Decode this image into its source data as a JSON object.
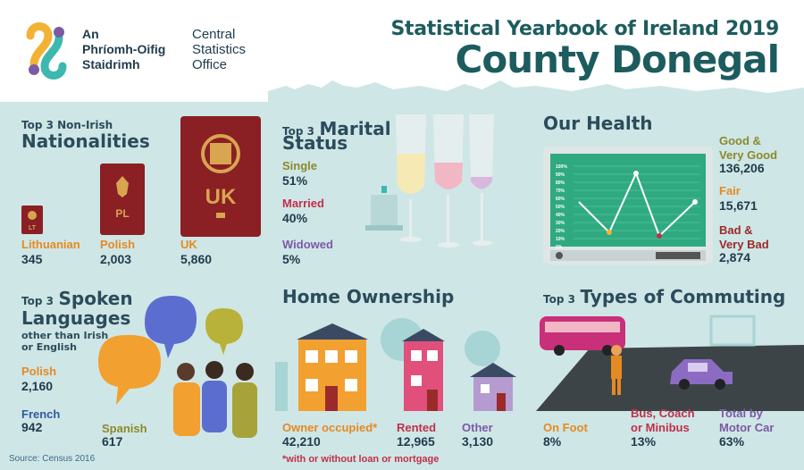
{
  "logo": {
    "irish_line1": "An",
    "irish_line2": "Phríomh-Oifig",
    "irish_line3": "Staidrimh",
    "english_line1": "Central",
    "english_line2": "Statistics",
    "english_line3": "Office"
  },
  "header": {
    "subtitle": "Statistical Yearbook of Ireland 2019",
    "title": "County Donegal"
  },
  "nationalities": {
    "title_small": "Top 3 Non-Irish",
    "title_large": "Nationalities",
    "items": [
      {
        "label": "Lithuanian",
        "value": "345",
        "code": "LT"
      },
      {
        "label": "Polish",
        "value": "2,003",
        "code": "PL"
      },
      {
        "label": "UK",
        "value": "5,860",
        "code": "UK"
      }
    ]
  },
  "marital": {
    "title_small": "Top 3",
    "title_large1": "Marital",
    "title_large2": "Status",
    "items": [
      {
        "label": "Single",
        "value": "51%"
      },
      {
        "label": "Married",
        "value": "40%"
      },
      {
        "label": "Widowed",
        "value": "5%"
      }
    ]
  },
  "health": {
    "title": "Our Health",
    "monitor_ticks": [
      "100%",
      "90%",
      "80%",
      "70%",
      "60%",
      "50%",
      "40%",
      "30%",
      "20%",
      "10%",
      "0%"
    ],
    "items": [
      {
        "label_line1": "Good &",
        "label_line2": "Very Good",
        "value": "136,206"
      },
      {
        "label_line1": "Fair",
        "label_line2": "",
        "value": "15,671"
      },
      {
        "label_line1": "Bad &",
        "label_line2": "Very Bad",
        "value": "2,874"
      }
    ]
  },
  "languages": {
    "title_small": "Top 3",
    "title_large1": "Spoken",
    "title_large2": "Languages",
    "subtitle_line1": "other than Irish",
    "subtitle_line2": "or English",
    "items": [
      {
        "label": "Polish",
        "value": "2,160"
      },
      {
        "label": "French",
        "value": "942"
      },
      {
        "label": "Spanish",
        "value": "617"
      }
    ]
  },
  "ownership": {
    "title": "Home Ownership",
    "items": [
      {
        "label": "Owner occupied*",
        "value": "42,210"
      },
      {
        "label": "Rented",
        "value": "12,965"
      },
      {
        "label": "Other",
        "value": "3,130"
      }
    ],
    "note": "*with or without loan or mortgage"
  },
  "commuting": {
    "title_small": "Top 3",
    "title_large": "Types of Commuting",
    "items": [
      {
        "label_line1": "On Foot",
        "label_line2": "",
        "value": "8%"
      },
      {
        "label_line1": "Bus, Coach",
        "label_line2": "or Minibus",
        "value": "13%"
      },
      {
        "label_line1": "Total by",
        "label_line2": "Motor Car",
        "value": "63%"
      }
    ]
  },
  "source": "Source: Census 2016",
  "colors": {
    "background": "#cfe6e6",
    "title": "#1d5c5e",
    "orange": "#e58a22",
    "red": "#c0304a",
    "purple": "#7b5aa6",
    "olive": "#8a8a2a"
  }
}
